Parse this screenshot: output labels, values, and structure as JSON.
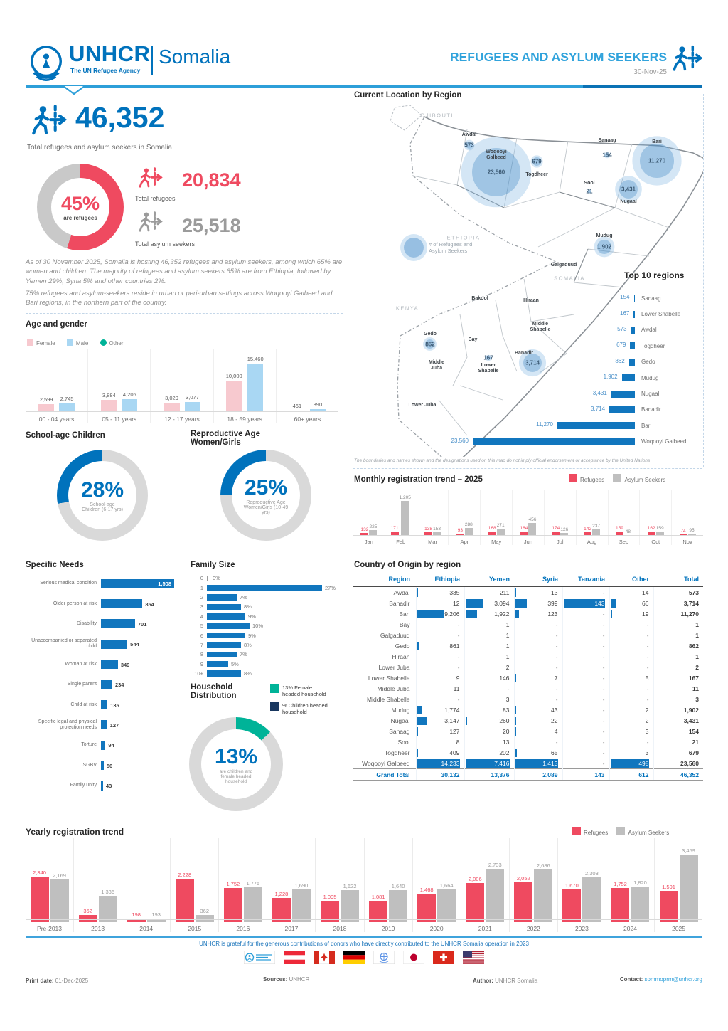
{
  "colors": {
    "blue": "#0072BC",
    "light_blue": "#2D9FD9",
    "red": "#EF4A60",
    "gray_bar": "#BFBFBF",
    "green": "#00B398",
    "navy": "#18375F",
    "pink_bar": "#F7C9CF",
    "male_blue": "#A9D7F3",
    "bar_blue": "#1176BE"
  },
  "header": {
    "logo_title": "UNHCR",
    "logo_subtitle": "The UN Refugee Agency",
    "operation": "Somalia",
    "report_title": "REFUGEES AND ASYLUM SEEKERS",
    "report_date": "30-Nov-25"
  },
  "key_figures": {
    "total": "46,352",
    "total_label": "Total refugees and asylum seekers in Somalia",
    "refugee_pct": 45,
    "refugee_pct_text": "45%",
    "refugee_pct_label": "are refugees",
    "total_refugees": "20,834",
    "total_refugees_label": "Total refugees",
    "total_asylum": "25,518",
    "total_asylum_label": "Total asylum seekers",
    "narrative1": "As of 30 November 2025, Somalia is hosting 46,352 refugees and asylum seekers, among which 65% are women and children. The majority of refugees and asylum seekers 65% are from Ethiopia, followed by Yemen 29%, Syria 5% and other countries 2%.",
    "narrative2": "75% refugees and asylum-seekers reside in urban or peri-urban settings across Woqooyi Galbeed and Bari regions, in the northern part of the country."
  },
  "age_gender": {
    "type": "bar",
    "title": "Age and gender",
    "legend": [
      "Female",
      "Male",
      "Other"
    ],
    "categories": [
      "00 - 04 years",
      "05 - 11 years",
      "12 - 17 years",
      "18 - 59 years",
      "60+ years"
    ],
    "series": [
      {
        "name": "Female",
        "values": [
          2599,
          3884,
          3029,
          10000,
          461
        ]
      },
      {
        "name": "Male",
        "values": [
          2745,
          4206,
          3077,
          15460,
          890
        ]
      },
      {
        "name": "Other",
        "values": [
          0,
          0,
          0,
          0,
          0
        ]
      }
    ]
  },
  "school_age": {
    "title": "School-age Children",
    "pct": 28,
    "pct_text": "28%",
    "sub": "School-age\nChildren (6-17 yrs)"
  },
  "reproductive": {
    "title": "Reproductive Age\nWomen/Girls",
    "pct": 25,
    "pct_text": "25%",
    "sub": "Reproductive Age\nWomen/Girls (10-49\nyrs)"
  },
  "specific_needs": {
    "type": "bar",
    "title": "Specific Needs",
    "categories": [
      "Serious medical condition",
      "Older person at risk",
      "Disability",
      "Unaccompanied or separated child",
      "Woman at risk",
      "Single parent",
      "Child at risk",
      "Specific legal and physical protection needs",
      "Torture",
      "SGBV",
      "Family unity"
    ],
    "values": [
      1508,
      854,
      701,
      544,
      349,
      234,
      135,
      127,
      94,
      56,
      43
    ]
  },
  "family_size": {
    "type": "bar",
    "title": "Family Size",
    "unit": "%",
    "categories": [
      "0",
      "1",
      "2",
      "3",
      "4",
      "5",
      "6",
      "7",
      "8",
      "9",
      "10+"
    ],
    "values": [
      0,
      27,
      7,
      8,
      9,
      10,
      9,
      8,
      7,
      5,
      8
    ]
  },
  "household": {
    "title": "Household\nDistribution",
    "pct": 13,
    "pct_text": "13%",
    "center_sub": "are children and\nfemale headed\nhousehold",
    "legend": [
      {
        "label": "13% Female\nheaded household",
        "color": "#00B398"
      },
      {
        "label": "% Children headed\nhousehold",
        "color": "#18375F"
      }
    ]
  },
  "map": {
    "title": "Current Location by Region",
    "legend": "# of Refugees and\nAsylum Seekers",
    "countries": [
      "DJIBOUTI",
      "ETHIOPIA",
      "KENYA",
      "SOMALIA"
    ],
    "regions": [
      {
        "name": "Awdal",
        "value": 573
      },
      {
        "name": "Woqooyi Galbeed",
        "value": 23560
      },
      {
        "name": "Togdheer",
        "value": 679
      },
      {
        "name": "Sanaag",
        "value": 154
      },
      {
        "name": "Sool",
        "value": 21
      },
      {
        "name": "Bari",
        "value": 11270
      },
      {
        "name": "Nugaal",
        "value": 3431
      },
      {
        "name": "Mudug",
        "value": 1902
      },
      {
        "name": "Galgaduud",
        "value": null
      },
      {
        "name": "Bakool",
        "value": null
      },
      {
        "name": "Hiraan",
        "value": null
      },
      {
        "name": "Gedo",
        "value": 862
      },
      {
        "name": "Bay",
        "value": null
      },
      {
        "name": "Middle Shabelle",
        "value": null
      },
      {
        "name": "Middle Juba",
        "value": null
      },
      {
        "name": "Lower Shabelle",
        "value": 167
      },
      {
        "name": "Banadir",
        "value": 3714
      },
      {
        "name": "Lower Juba",
        "value": null
      }
    ],
    "disclaimer": "The boundaries and names shown and the designations used on this map do not imply official endorsement or acceptance by the United Nations"
  },
  "top10": {
    "type": "bar",
    "title": "Top 10 regions",
    "categories": [
      "Sanaag",
      "Lower Shabelle",
      "Awdal",
      "Togdheer",
      "Gedo",
      "Mudug",
      "Nugaal",
      "Banadir",
      "Bari",
      "Woqooyi Galbeed"
    ],
    "values": [
      154,
      167,
      573,
      679,
      862,
      1902,
      3431,
      3714,
      11270,
      23560
    ]
  },
  "monthly": {
    "type": "bar",
    "title": "Monthly registration trend – 2025",
    "legend": [
      "Refugees",
      "Asylum Seekers"
    ],
    "categories": [
      "Jan",
      "Feb",
      "Mar",
      "Apr",
      "May",
      "Jun",
      "Jul",
      "Aug",
      "Sep",
      "Oct",
      "Nov"
    ],
    "series": [
      {
        "name": "Refugees",
        "values": [
          132,
          171,
          138,
          93,
          168,
          164,
          174,
          142,
          159,
          162,
          74
        ]
      },
      {
        "name": "Asylum Seekers",
        "values": [
          225,
          1205,
          153,
          288,
          271,
          456,
          126,
          237,
          48,
          159,
          95
        ]
      }
    ]
  },
  "origin_table": {
    "title": "Country of Origin by region",
    "columns": [
      "Region",
      "Ethiopia",
      "Yemen",
      "Syria",
      "Tanzania",
      "Other",
      "Total"
    ],
    "rows": [
      [
        "Awdal",
        "335",
        "211",
        "13",
        "-",
        "14",
        "573"
      ],
      [
        "Banadir",
        "12",
        "3,094",
        "399",
        "143",
        "66",
        "3,714"
      ],
      [
        "Bari",
        "9,206",
        "1,922",
        "123",
        "-",
        "19",
        "11,270"
      ],
      [
        "Bay",
        "-",
        "1",
        "-",
        "-",
        "-",
        "1"
      ],
      [
        "Galgaduud",
        "-",
        "1",
        "-",
        "-",
        "-",
        "1"
      ],
      [
        "Gedo",
        "861",
        "1",
        "-",
        "-",
        "-",
        "862"
      ],
      [
        "Hiraan",
        "-",
        "1",
        "-",
        "-",
        "-",
        "1"
      ],
      [
        "Lower Juba",
        "-",
        "2",
        "-",
        "-",
        "-",
        "2"
      ],
      [
        "Lower Shabelle",
        "9",
        "146",
        "7",
        "-",
        "5",
        "167"
      ],
      [
        "Middle Juba",
        "11",
        "-",
        "-",
        "-",
        "-",
        "11"
      ],
      [
        "Middle Shabelle",
        "-",
        "3",
        "-",
        "-",
        "-",
        "3"
      ],
      [
        "Mudug",
        "1,774",
        "83",
        "43",
        "-",
        "2",
        "1,902"
      ],
      [
        "Nugaal",
        "3,147",
        "260",
        "22",
        "-",
        "2",
        "3,431"
      ],
      [
        "Sanaag",
        "127",
        "20",
        "4",
        "-",
        "3",
        "154"
      ],
      [
        "Sool",
        "8",
        "13",
        "-",
        "-",
        "-",
        "21"
      ],
      [
        "Togdheer",
        "409",
        "202",
        "65",
        "-",
        "3",
        "679"
      ],
      [
        "Woqooyi Galbeed",
        "14,233",
        "7,416",
        "1,413",
        "-",
        "498",
        "23,560"
      ]
    ],
    "grand_total": [
      "Grand Total",
      "30,132",
      "13,376",
      "2,089",
      "143",
      "612",
      "46,352"
    ]
  },
  "yearly": {
    "type": "bar",
    "title": "Yearly registration trend",
    "legend": [
      "Refugees",
      "Asylum Seekers"
    ],
    "categories": [
      "Pre-2013",
      "2013",
      "2014",
      "2015",
      "2016",
      "2017",
      "2018",
      "2019",
      "2020",
      "2021",
      "2022",
      "2023",
      "2024",
      "2025"
    ],
    "series": [
      {
        "name": "Refugees",
        "values": [
          2340,
          362,
          198,
          2228,
          1752,
          1228,
          1095,
          1081,
          1468,
          2006,
          2052,
          1670,
          1752,
          1591
        ]
      },
      {
        "name": "Asylum Seekers",
        "values": [
          2169,
          1336,
          193,
          362,
          1775,
          1690,
          1622,
          1640,
          1664,
          2733,
          2686,
          2303,
          1820,
          3459
        ]
      }
    ]
  },
  "footer": {
    "donor_text": "UNHCR is grateful for the generous contributions of donors who have directly contributed to the UNHCR Somalia operation in 2023",
    "print_date_label": "Print date:",
    "print_date": "01-Dec-2025",
    "sources_label": "Sources:",
    "sources": "UNHCR",
    "author_label": "Author:",
    "author": "UNHCR Somalia",
    "contact_label": "Contact:",
    "contact": "sommoprm@unhcr.org"
  }
}
